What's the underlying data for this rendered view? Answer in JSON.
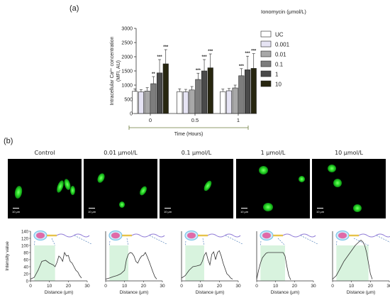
{
  "panel_a_label": "(a)",
  "panel_b_label": "(b)",
  "chart_data": [
    {
      "type": "bar",
      "title": "",
      "xlabel": "Time (Hours)",
      "ylabel_line1": "Intracellular Ca²⁺ concentration",
      "ylabel_line2": "(MFI, AU)",
      "ylim": [
        0,
        3000
      ],
      "yticks": [
        "0",
        "500",
        "1000",
        "1500",
        "2000",
        "2500",
        "3000"
      ],
      "categories": [
        "0",
        "0.5",
        "1"
      ],
      "legend_title": "Ionomycin (μmol/L)",
      "legend_position": "right",
      "series": [
        {
          "name": "UC",
          "color": "#ffffff",
          "values": [
            780,
            770,
            770
          ],
          "errors": [
            90,
            100,
            90
          ],
          "sig": [
            "",
            "",
            ""
          ]
        },
        {
          "name": "0.001",
          "color": "#e6e4f4",
          "values": [
            760,
            760,
            800
          ],
          "errors": [
            80,
            90,
            80
          ],
          "sig": [
            "",
            "",
            ""
          ]
        },
        {
          "name": "0.01",
          "color": "#a8a8a8",
          "values": [
            790,
            830,
            900
          ],
          "errors": [
            120,
            120,
            100
          ],
          "sig": [
            "",
            "",
            ""
          ]
        },
        {
          "name": "0.1",
          "color": "#7d7d7d",
          "values": [
            1050,
            1200,
            1330
          ],
          "errors": [
            250,
            220,
            250
          ],
          "sig": [
            "**",
            "***",
            "***"
          ]
        },
        {
          "name": "1",
          "color": "#4a4a4a",
          "values": [
            1430,
            1500,
            1540
          ],
          "errors": [
            470,
            400,
            480
          ],
          "sig": [
            "***",
            "***",
            "***"
          ]
        },
        {
          "name": "10",
          "color": "#27260f",
          "values": [
            1750,
            1610,
            1590
          ],
          "errors": [
            500,
            490,
            520
          ],
          "sig": [
            "***",
            "***",
            "***"
          ]
        }
      ]
    },
    {
      "type": "line",
      "title": "Control",
      "xlabel": "Distance (μm)",
      "ylabel": "Intensity value",
      "xlim": [
        0,
        30
      ],
      "ylim": [
        0,
        140
      ],
      "xticks": [
        "0",
        "10",
        "20",
        "30"
      ],
      "yticks": [
        "0",
        "20",
        "40",
        "60",
        "80",
        "100",
        "120",
        "140"
      ],
      "highlight_x": [
        2,
        13
      ],
      "x": [
        0,
        2,
        4,
        6,
        8,
        10,
        12,
        13,
        14,
        15,
        16,
        17,
        18,
        19,
        20,
        21,
        22,
        23,
        24,
        25,
        26,
        27
      ],
      "y": [
        5,
        10,
        30,
        55,
        58,
        50,
        45,
        40,
        52,
        70,
        65,
        55,
        80,
        70,
        72,
        55,
        50,
        40,
        30,
        25,
        15,
        8
      ]
    },
    {
      "type": "line",
      "title": "0.01 μmol/L",
      "xlabel": "Distance (μm)",
      "ylabel": "",
      "xlim": [
        0,
        30
      ],
      "ylim": [
        0,
        140
      ],
      "xticks": [
        "0",
        "10",
        "20",
        "30"
      ],
      "yticks": [],
      "highlight_x": [
        2,
        12
      ],
      "x": [
        0,
        2,
        4,
        6,
        8,
        10,
        11,
        12,
        13,
        14,
        15,
        16,
        17,
        18,
        19,
        20,
        21,
        22,
        23,
        24,
        25,
        26,
        27
      ],
      "y": [
        5,
        8,
        12,
        15,
        20,
        30,
        60,
        75,
        80,
        78,
        70,
        55,
        50,
        62,
        70,
        72,
        80,
        68,
        55,
        40,
        25,
        12,
        5
      ]
    },
    {
      "type": "line",
      "title": "0.1 μmol/L",
      "xlabel": "Distance (μm)",
      "ylabel": "",
      "xlim": [
        0,
        30
      ],
      "ylim": [
        0,
        140
      ],
      "xticks": [
        "0",
        "10",
        "20",
        "30"
      ],
      "yticks": [],
      "highlight_x": [
        2,
        12
      ],
      "x": [
        0,
        2,
        4,
        6,
        8,
        10,
        11,
        12,
        13,
        14,
        15,
        16,
        17,
        18,
        19,
        20,
        21,
        22,
        23,
        24,
        25,
        26,
        27
      ],
      "y": [
        8,
        15,
        30,
        40,
        42,
        45,
        55,
        72,
        80,
        60,
        45,
        75,
        82,
        60,
        80,
        85,
        70,
        50,
        35,
        20,
        15,
        8,
        5
      ]
    },
    {
      "type": "line",
      "title": "1 μmol/L",
      "xlabel": "Distance (μm)",
      "ylabel": "",
      "xlim": [
        0,
        30
      ],
      "ylim": [
        0,
        140
      ],
      "xticks": [
        "0",
        "10",
        "20",
        "30"
      ],
      "yticks": [],
      "highlight_x": [
        2,
        15
      ],
      "x": [
        0,
        1,
        2,
        3,
        4,
        5,
        6,
        7,
        8,
        10,
        12,
        14,
        15,
        16,
        17,
        18
      ],
      "y": [
        5,
        30,
        50,
        65,
        72,
        78,
        80,
        80,
        80,
        80,
        80,
        80,
        70,
        40,
        15,
        3
      ]
    },
    {
      "type": "line",
      "title": "10 μmol/L",
      "xlabel": "Distance (μm)",
      "ylabel": "",
      "xlim": [
        0,
        30
      ],
      "ylim": [
        0,
        140
      ],
      "xticks": [
        "0",
        "10",
        "20",
        "30"
      ],
      "yticks": [],
      "highlight_x": [
        2,
        19
      ],
      "x": [
        0,
        2,
        4,
        6,
        8,
        10,
        12,
        14,
        15,
        16,
        17,
        18,
        19,
        20,
        21
      ],
      "y": [
        5,
        15,
        35,
        55,
        70,
        85,
        100,
        110,
        115,
        110,
        100,
        80,
        50,
        20,
        5
      ]
    }
  ],
  "micrographs": [
    {
      "title": "Control",
      "scale_label": "10 μm"
    },
    {
      "title": "0.01 μmol/L",
      "scale_label": "10 μm"
    },
    {
      "title": "0.1 μmol/L",
      "scale_label": "10 μm"
    },
    {
      "title": "1 μmol/L",
      "scale_label": "10 μm"
    },
    {
      "title": "10 μmol/L",
      "scale_label": "10 μm"
    }
  ],
  "colors": {
    "fluorescence": "#2ee02a",
    "highlight": "#d8f3de",
    "axis": "#333333",
    "time_bracket": "#6b7a3a",
    "sperm_head": "#e06aa8",
    "sperm_membrane": "#7cc3e8",
    "sperm_midpiece": "#e6c34a",
    "sperm_tail": "#8f7ad6"
  }
}
